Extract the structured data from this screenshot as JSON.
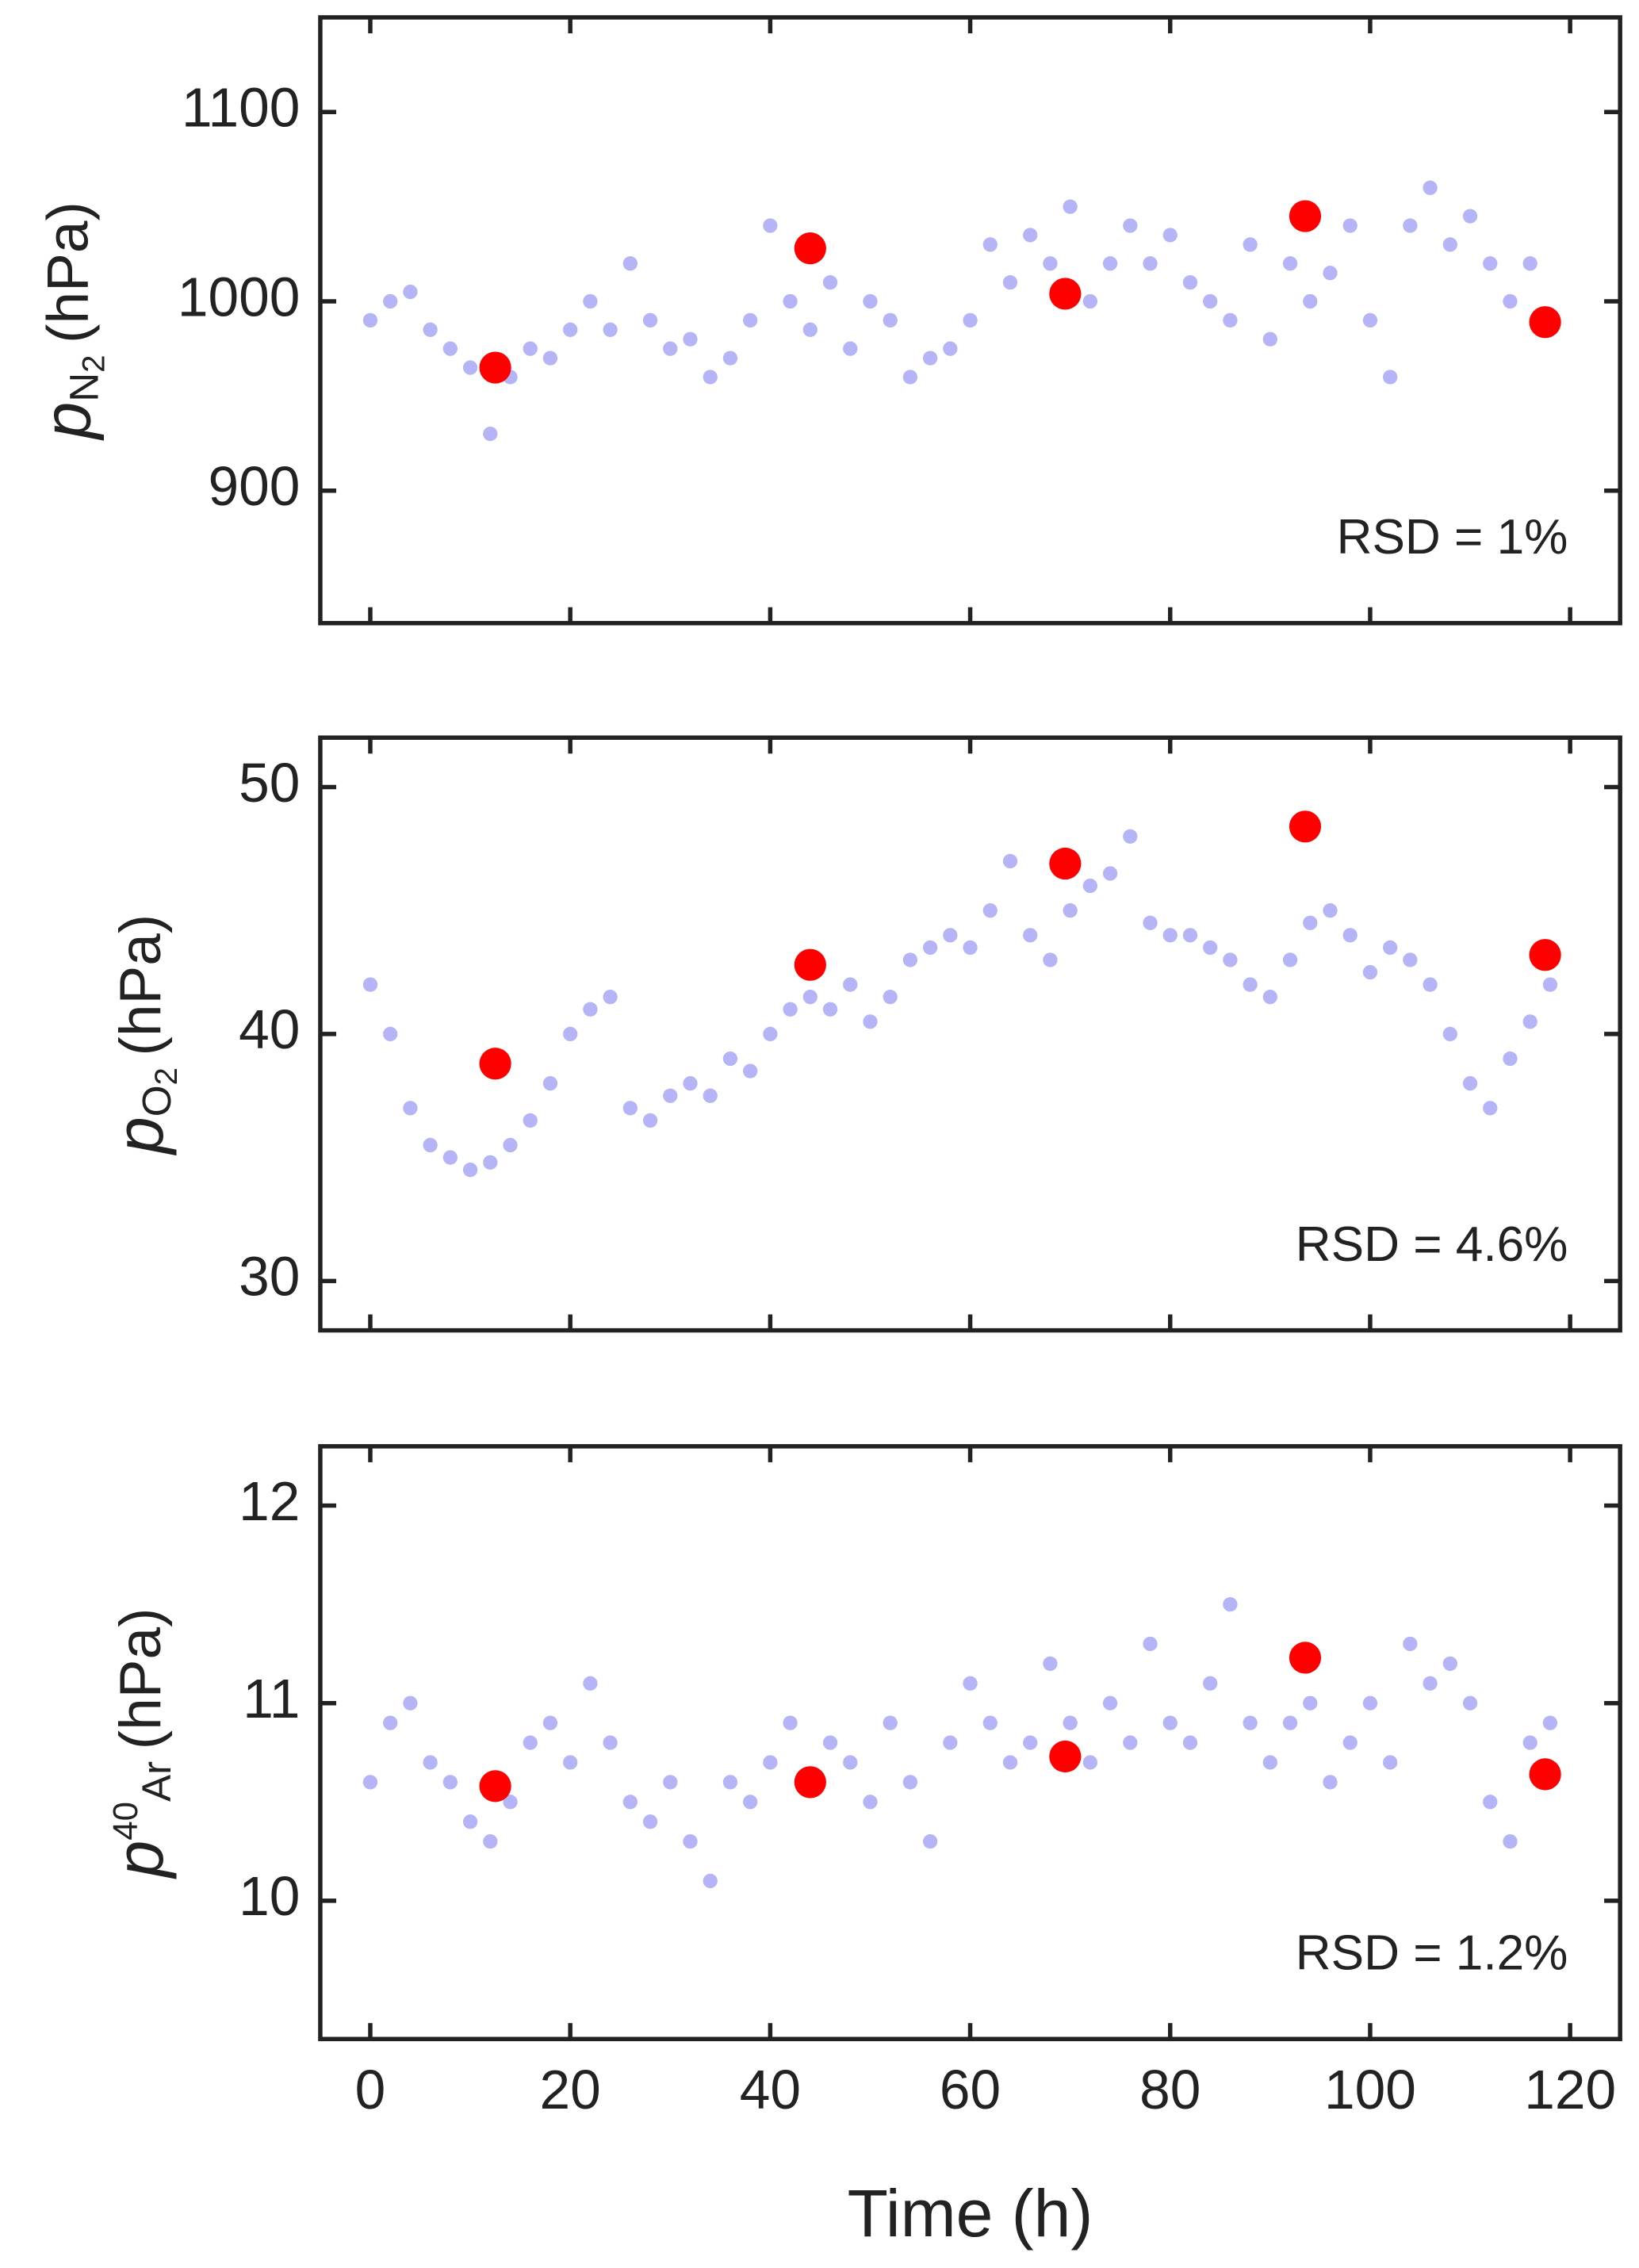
{
  "chart_data": [
    {
      "type": "scatter",
      "ylabel": {
        "symbol": "p",
        "sub": "N",
        "subsub": "2",
        "unit": "(hPa)"
      },
      "annotation": "RSD = 1%",
      "x": [
        0,
        2,
        4,
        6,
        8,
        10,
        12,
        14,
        16,
        18,
        20,
        22,
        24,
        26,
        28,
        30,
        32,
        34,
        36,
        38,
        40,
        42,
        44,
        46,
        48,
        50,
        52,
        54,
        56,
        58,
        60,
        62,
        64,
        66,
        68,
        70,
        72,
        74,
        76,
        78,
        80,
        82,
        84,
        86,
        88,
        90,
        92,
        94,
        96,
        98,
        100,
        102,
        104,
        106,
        108,
        110,
        112,
        114,
        116,
        118
      ],
      "values": [
        990,
        1000,
        1005,
        985,
        975,
        965,
        930,
        960,
        975,
        970,
        985,
        1000,
        985,
        1020,
        990,
        975,
        980,
        960,
        970,
        990,
        1040,
        1000,
        985,
        1010,
        975,
        1000,
        990,
        960,
        970,
        975,
        990,
        1030,
        1010,
        1035,
        1020,
        1050,
        1000,
        1020,
        1040,
        1020,
        1035,
        1010,
        1000,
        990,
        1030,
        980,
        1020,
        1000,
        1015,
        1040,
        990,
        960,
        1040,
        1060,
        1030,
        1045,
        1020,
        1000,
        1020,
        990
      ],
      "color": "#b4b4f6",
      "highlight": {
        "x": [
          12.5,
          44,
          69.5,
          93.5,
          117.5
        ],
        "values": [
          965,
          1028,
          1004,
          1045,
          989
        ],
        "color": "#ff0000"
      },
      "xlim": [
        -5,
        125
      ],
      "xticks": [
        0,
        20,
        40,
        60,
        80,
        100,
        120
      ],
      "ylim": [
        830,
        1150
      ],
      "yticks": [
        900,
        1000,
        1100
      ]
    },
    {
      "type": "scatter",
      "ylabel": {
        "symbol": "p",
        "sub": "O",
        "subsub": "2",
        "unit": "(hPa)"
      },
      "annotation": "RSD = 4.6%",
      "x": [
        0,
        2,
        4,
        6,
        8,
        10,
        12,
        14,
        16,
        18,
        20,
        22,
        24,
        26,
        28,
        30,
        32,
        34,
        36,
        38,
        40,
        42,
        44,
        46,
        48,
        50,
        52,
        54,
        56,
        58,
        60,
        62,
        64,
        66,
        68,
        70,
        72,
        74,
        76,
        78,
        80,
        82,
        84,
        86,
        88,
        90,
        92,
        94,
        96,
        98,
        100,
        102,
        104,
        106,
        108,
        110,
        112,
        114,
        116,
        118
      ],
      "values": [
        42,
        40,
        37,
        35.5,
        35,
        34.5,
        34.8,
        35.5,
        36.5,
        38,
        40,
        41,
        41.5,
        37,
        36.5,
        37.5,
        38,
        37.5,
        39,
        38.5,
        40,
        41,
        41.5,
        41,
        42,
        40.5,
        41.5,
        43,
        43.5,
        44,
        43.5,
        45,
        47,
        44,
        43,
        45,
        46,
        46.5,
        48,
        44.5,
        44,
        44,
        43.5,
        43,
        42,
        41.5,
        43,
        44.5,
        45,
        44,
        42.5,
        43.5,
        43,
        42,
        40,
        38,
        37,
        39,
        40.5,
        42
      ],
      "color": "#b4b4f6",
      "highlight": {
        "x": [
          12.5,
          44,
          69.5,
          93.5,
          117.5
        ],
        "values": [
          38.8,
          42.8,
          46.9,
          48.4,
          43.2
        ],
        "color": "#ff0000"
      },
      "xlim": [
        -5,
        125
      ],
      "xticks": [
        0,
        20,
        40,
        60,
        80,
        100,
        120
      ],
      "ylim": [
        28,
        52
      ],
      "yticks": [
        30,
        40,
        50
      ]
    },
    {
      "type": "scatter",
      "ylabel": {
        "symbol": "p",
        "sup": "40",
        "subsub": "Ar",
        "unit": "(hPa)"
      },
      "annotation": "RSD = 1.2%",
      "xlabel": "Time (h)",
      "x": [
        0,
        2,
        4,
        6,
        8,
        10,
        12,
        14,
        16,
        18,
        20,
        22,
        24,
        26,
        28,
        30,
        32,
        34,
        36,
        38,
        40,
        42,
        44,
        46,
        48,
        50,
        52,
        54,
        56,
        58,
        60,
        62,
        64,
        66,
        68,
        70,
        72,
        74,
        76,
        78,
        80,
        82,
        84,
        86,
        88,
        90,
        92,
        94,
        96,
        98,
        100,
        102,
        104,
        106,
        108,
        110,
        112,
        114,
        116,
        118
      ],
      "values": [
        10.6,
        10.9,
        11.0,
        10.7,
        10.6,
        10.4,
        10.3,
        10.5,
        10.8,
        10.9,
        10.7,
        11.1,
        10.8,
        10.5,
        10.4,
        10.6,
        10.3,
        10.1,
        10.6,
        10.5,
        10.7,
        10.9,
        10.6,
        10.8,
        10.7,
        10.5,
        10.9,
        10.6,
        10.3,
        10.8,
        11.1,
        10.9,
        10.7,
        10.8,
        11.2,
        10.9,
        10.7,
        11.0,
        10.8,
        11.3,
        10.9,
        10.8,
        11.1,
        11.5,
        10.9,
        10.7,
        10.9,
        11.0,
        10.6,
        10.8,
        11.0,
        10.7,
        11.3,
        11.1,
        11.2,
        11.0,
        10.5,
        10.3,
        10.8,
        10.9
      ],
      "color": "#b4b4f6",
      "highlight": {
        "x": [
          12.5,
          44,
          69.5,
          93.5,
          117.5
        ],
        "values": [
          10.58,
          10.6,
          10.73,
          11.23,
          10.64
        ],
        "color": "#ff0000"
      },
      "xlim": [
        -5,
        125
      ],
      "xticks": [
        0,
        20,
        40,
        60,
        80,
        100,
        120
      ],
      "ylim": [
        9.3,
        12.3
      ],
      "yticks": [
        10,
        11,
        12
      ]
    }
  ]
}
